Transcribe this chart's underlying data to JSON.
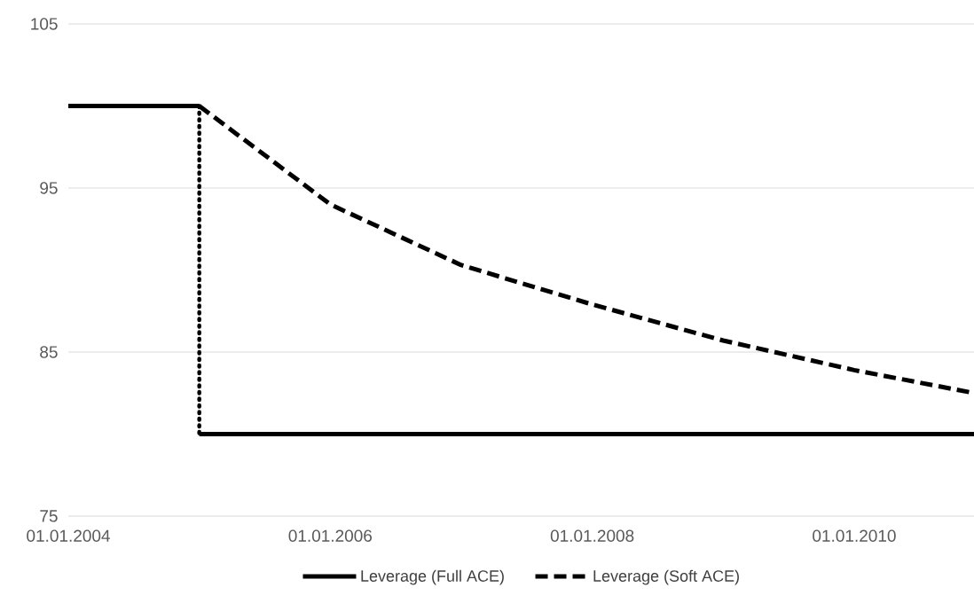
{
  "chart_data": {
    "type": "line",
    "xlim": [
      "2004-01-01",
      "2010-12-01"
    ],
    "xticks": [
      {
        "value": "2004-01-01",
        "label": "01.01.2004"
      },
      {
        "value": "2006-01-01",
        "label": "01.01.2006"
      },
      {
        "value": "2008-01-01",
        "label": "01.01.2008"
      },
      {
        "value": "2010-01-01",
        "label": "01.01.2010"
      }
    ],
    "ylim": [
      75,
      105
    ],
    "yticks": [
      75,
      85,
      95,
      105
    ],
    "grid": "y",
    "legend": "bottom",
    "marker": "none",
    "series": [
      {
        "name": "Leverage (Full ACE)",
        "color": "#000000",
        "line_style": "solid",
        "x": [
          "2004-01-01",
          "2005-01-01"
        ],
        "values": [
          100,
          100
        ]
      },
      {
        "color": "#000000",
        "line_style": "solid",
        "x": [
          "2005-01-01",
          "2010-12-01"
        ],
        "values": [
          80,
          80
        ]
      },
      {
        "name": "Leverage (Soft ACE)",
        "color": "#000000",
        "line_style": "dashed",
        "x": [
          "2005-01-01",
          "2006-01-01",
          "2007-01-01",
          "2008-01-01",
          "2009-01-01",
          "2010-01-01",
          "2010-12-01"
        ],
        "values": [
          100,
          94,
          90.3,
          87.9,
          85.7,
          83.9,
          82.5
        ]
      },
      {
        "color": "#000000",
        "line_style": "dotted",
        "x": [
          "2005-01-01",
          "2005-01-01"
        ],
        "values": [
          100,
          80
        ]
      }
    ]
  }
}
